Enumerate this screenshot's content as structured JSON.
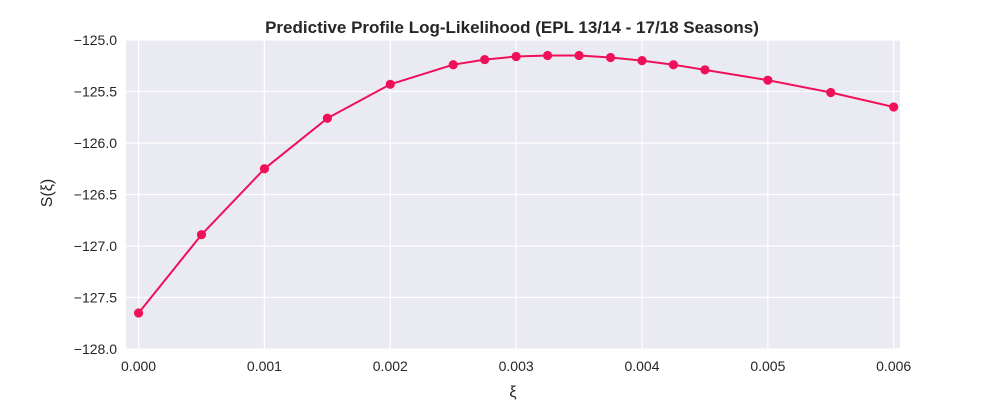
{
  "chart_data": {
    "type": "line",
    "title": "Predictive Profile Log-Likelihood (EPL 13/14 - 17/18 Seasons)",
    "xlabel": "ξ",
    "ylabel": "S(ξ)",
    "xlim": [
      -0.0001,
      0.00605
    ],
    "ylim": [
      -128.0,
      -125.0
    ],
    "x_ticks": [
      0.0,
      0.001,
      0.002,
      0.003,
      0.004,
      0.005,
      0.006
    ],
    "x_tick_labels": [
      "0.000",
      "0.001",
      "0.002",
      "0.003",
      "0.004",
      "0.005",
      "0.006"
    ],
    "y_ticks": [
      -125.0,
      -125.5,
      -126.0,
      -126.5,
      -127.0,
      -127.5,
      -128.0
    ],
    "y_tick_labels": [
      "−125.0",
      "−125.5",
      "−126.0",
      "−126.5",
      "−127.0",
      "−127.5",
      "−128.0"
    ],
    "grid": true,
    "background": "#eaeaf2",
    "grid_color": "#ffffff",
    "series_color": "#f0105a",
    "series": [
      {
        "x": [
          0.0,
          0.0005,
          0.001,
          0.0015,
          0.002,
          0.0025,
          0.00275,
          0.003,
          0.00325,
          0.0035,
          0.00375,
          0.004,
          0.00425,
          0.0045,
          0.005,
          0.0055,
          0.006
        ],
        "y": [
          -127.65,
          -126.89,
          -126.25,
          -125.76,
          -125.43,
          -125.24,
          -125.19,
          -125.16,
          -125.15,
          -125.15,
          -125.17,
          -125.2,
          -125.24,
          -125.29,
          -125.39,
          -125.51,
          -125.65
        ]
      }
    ]
  }
}
